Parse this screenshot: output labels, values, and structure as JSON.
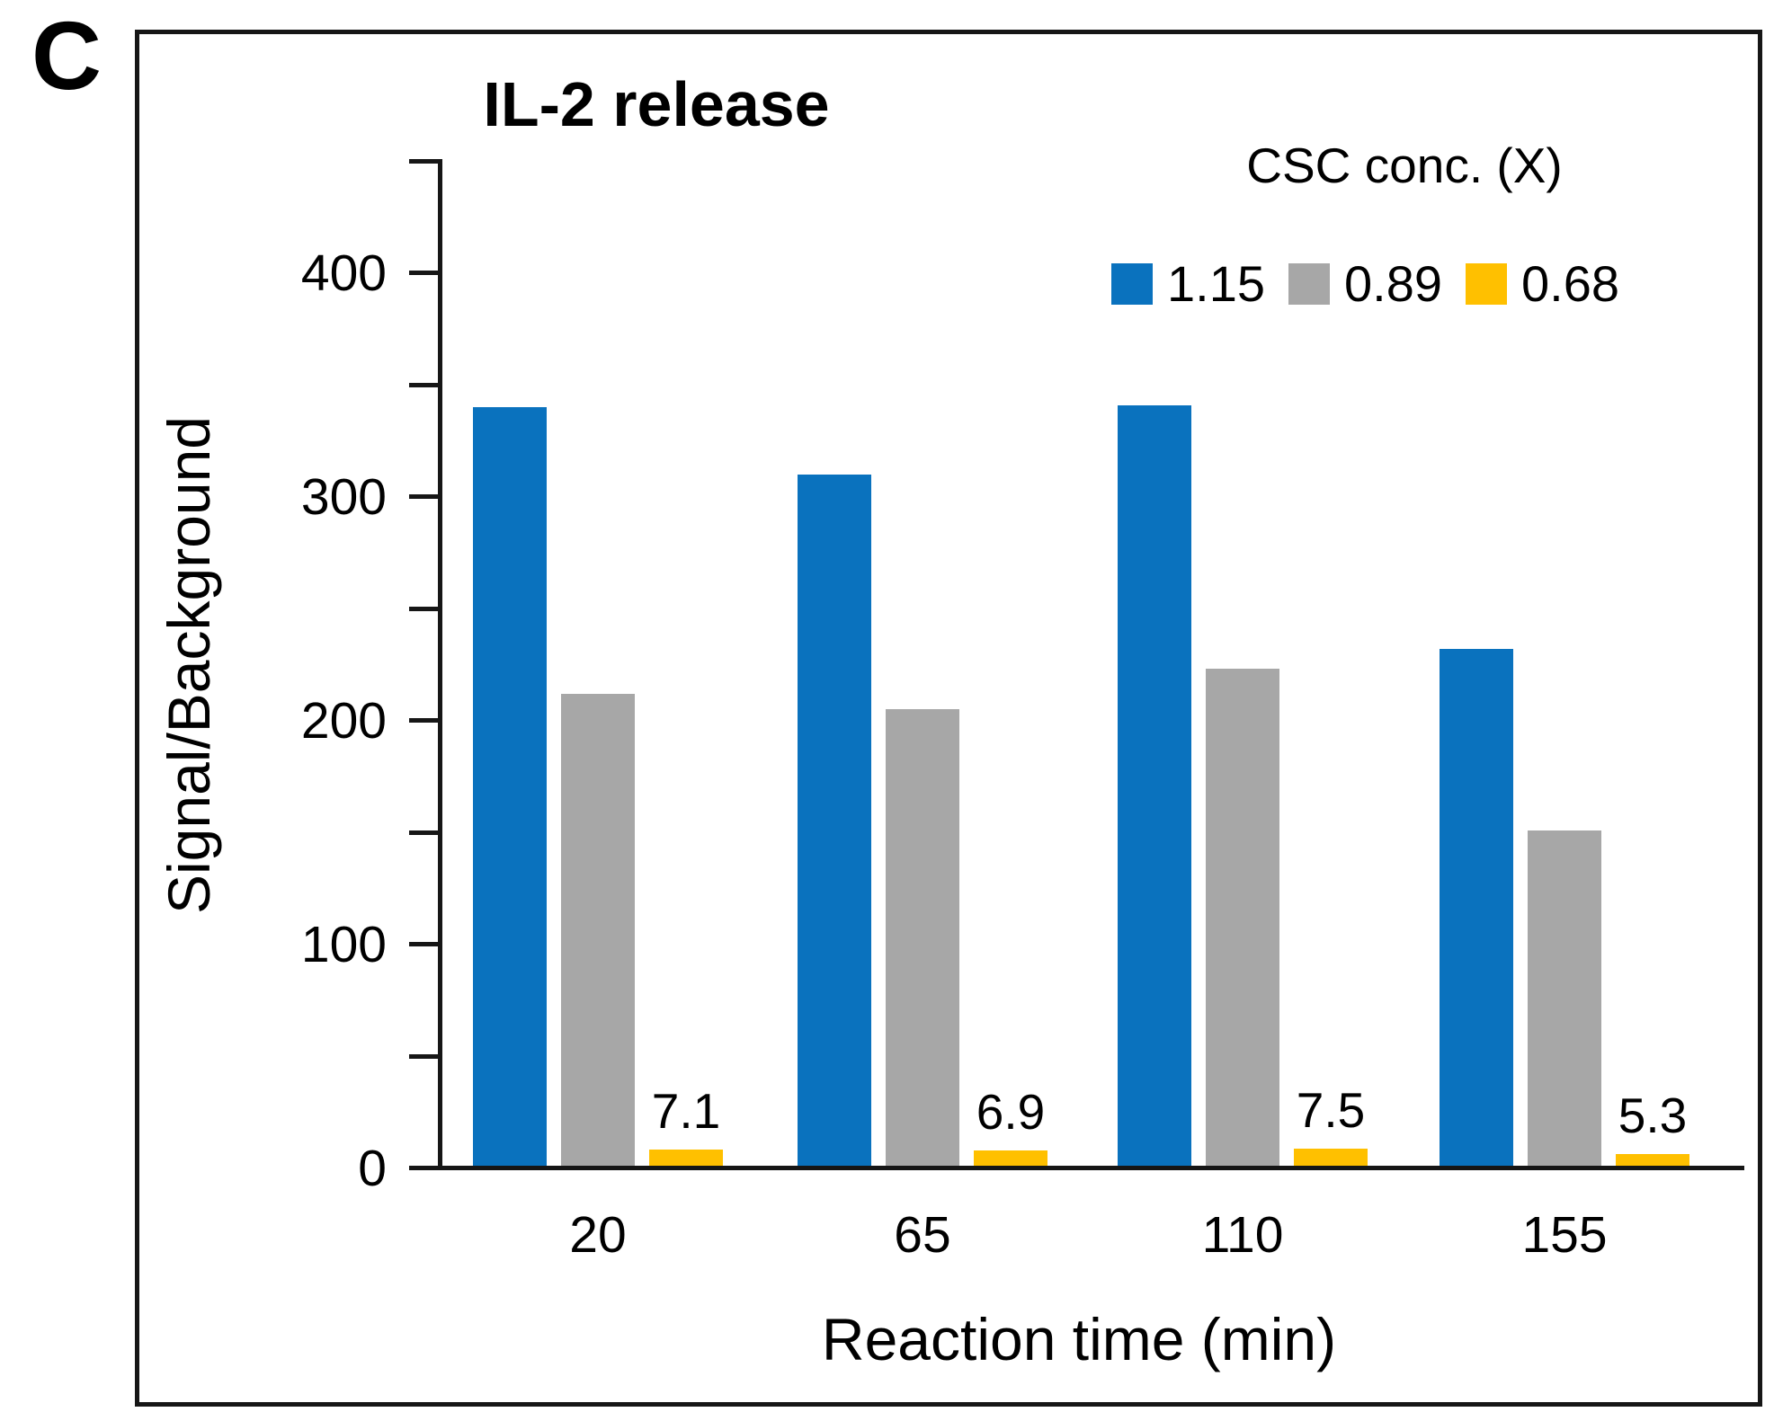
{
  "panel_label": "C",
  "chart_data": {
    "type": "bar",
    "title": "IL-2 release",
    "xlabel": "Reaction time (min)",
    "ylabel": "Signal/Background",
    "categories": [
      "20",
      "65",
      "110",
      "155"
    ],
    "series": [
      {
        "name": "1.15",
        "color": "#0A72BE",
        "values": [
          339,
          309,
          340,
          231
        ]
      },
      {
        "name": "0.89",
        "color": "#A7A7A7",
        "values": [
          211,
          204,
          222,
          150
        ]
      },
      {
        "name": "0.68",
        "color": "#FFC000",
        "values": [
          7.1,
          6.9,
          7.5,
          5.3
        ],
        "data_labels": [
          "7.1",
          "6.9",
          "7.5",
          "5.3"
        ]
      }
    ],
    "legend_title": "CSC conc. (X)",
    "legend_position": "top-right",
    "ylim": [
      0,
      450
    ],
    "yticks_labeled": [
      0,
      100,
      200,
      300,
      400
    ],
    "ytick_minor_step": 50,
    "grid": false
  }
}
